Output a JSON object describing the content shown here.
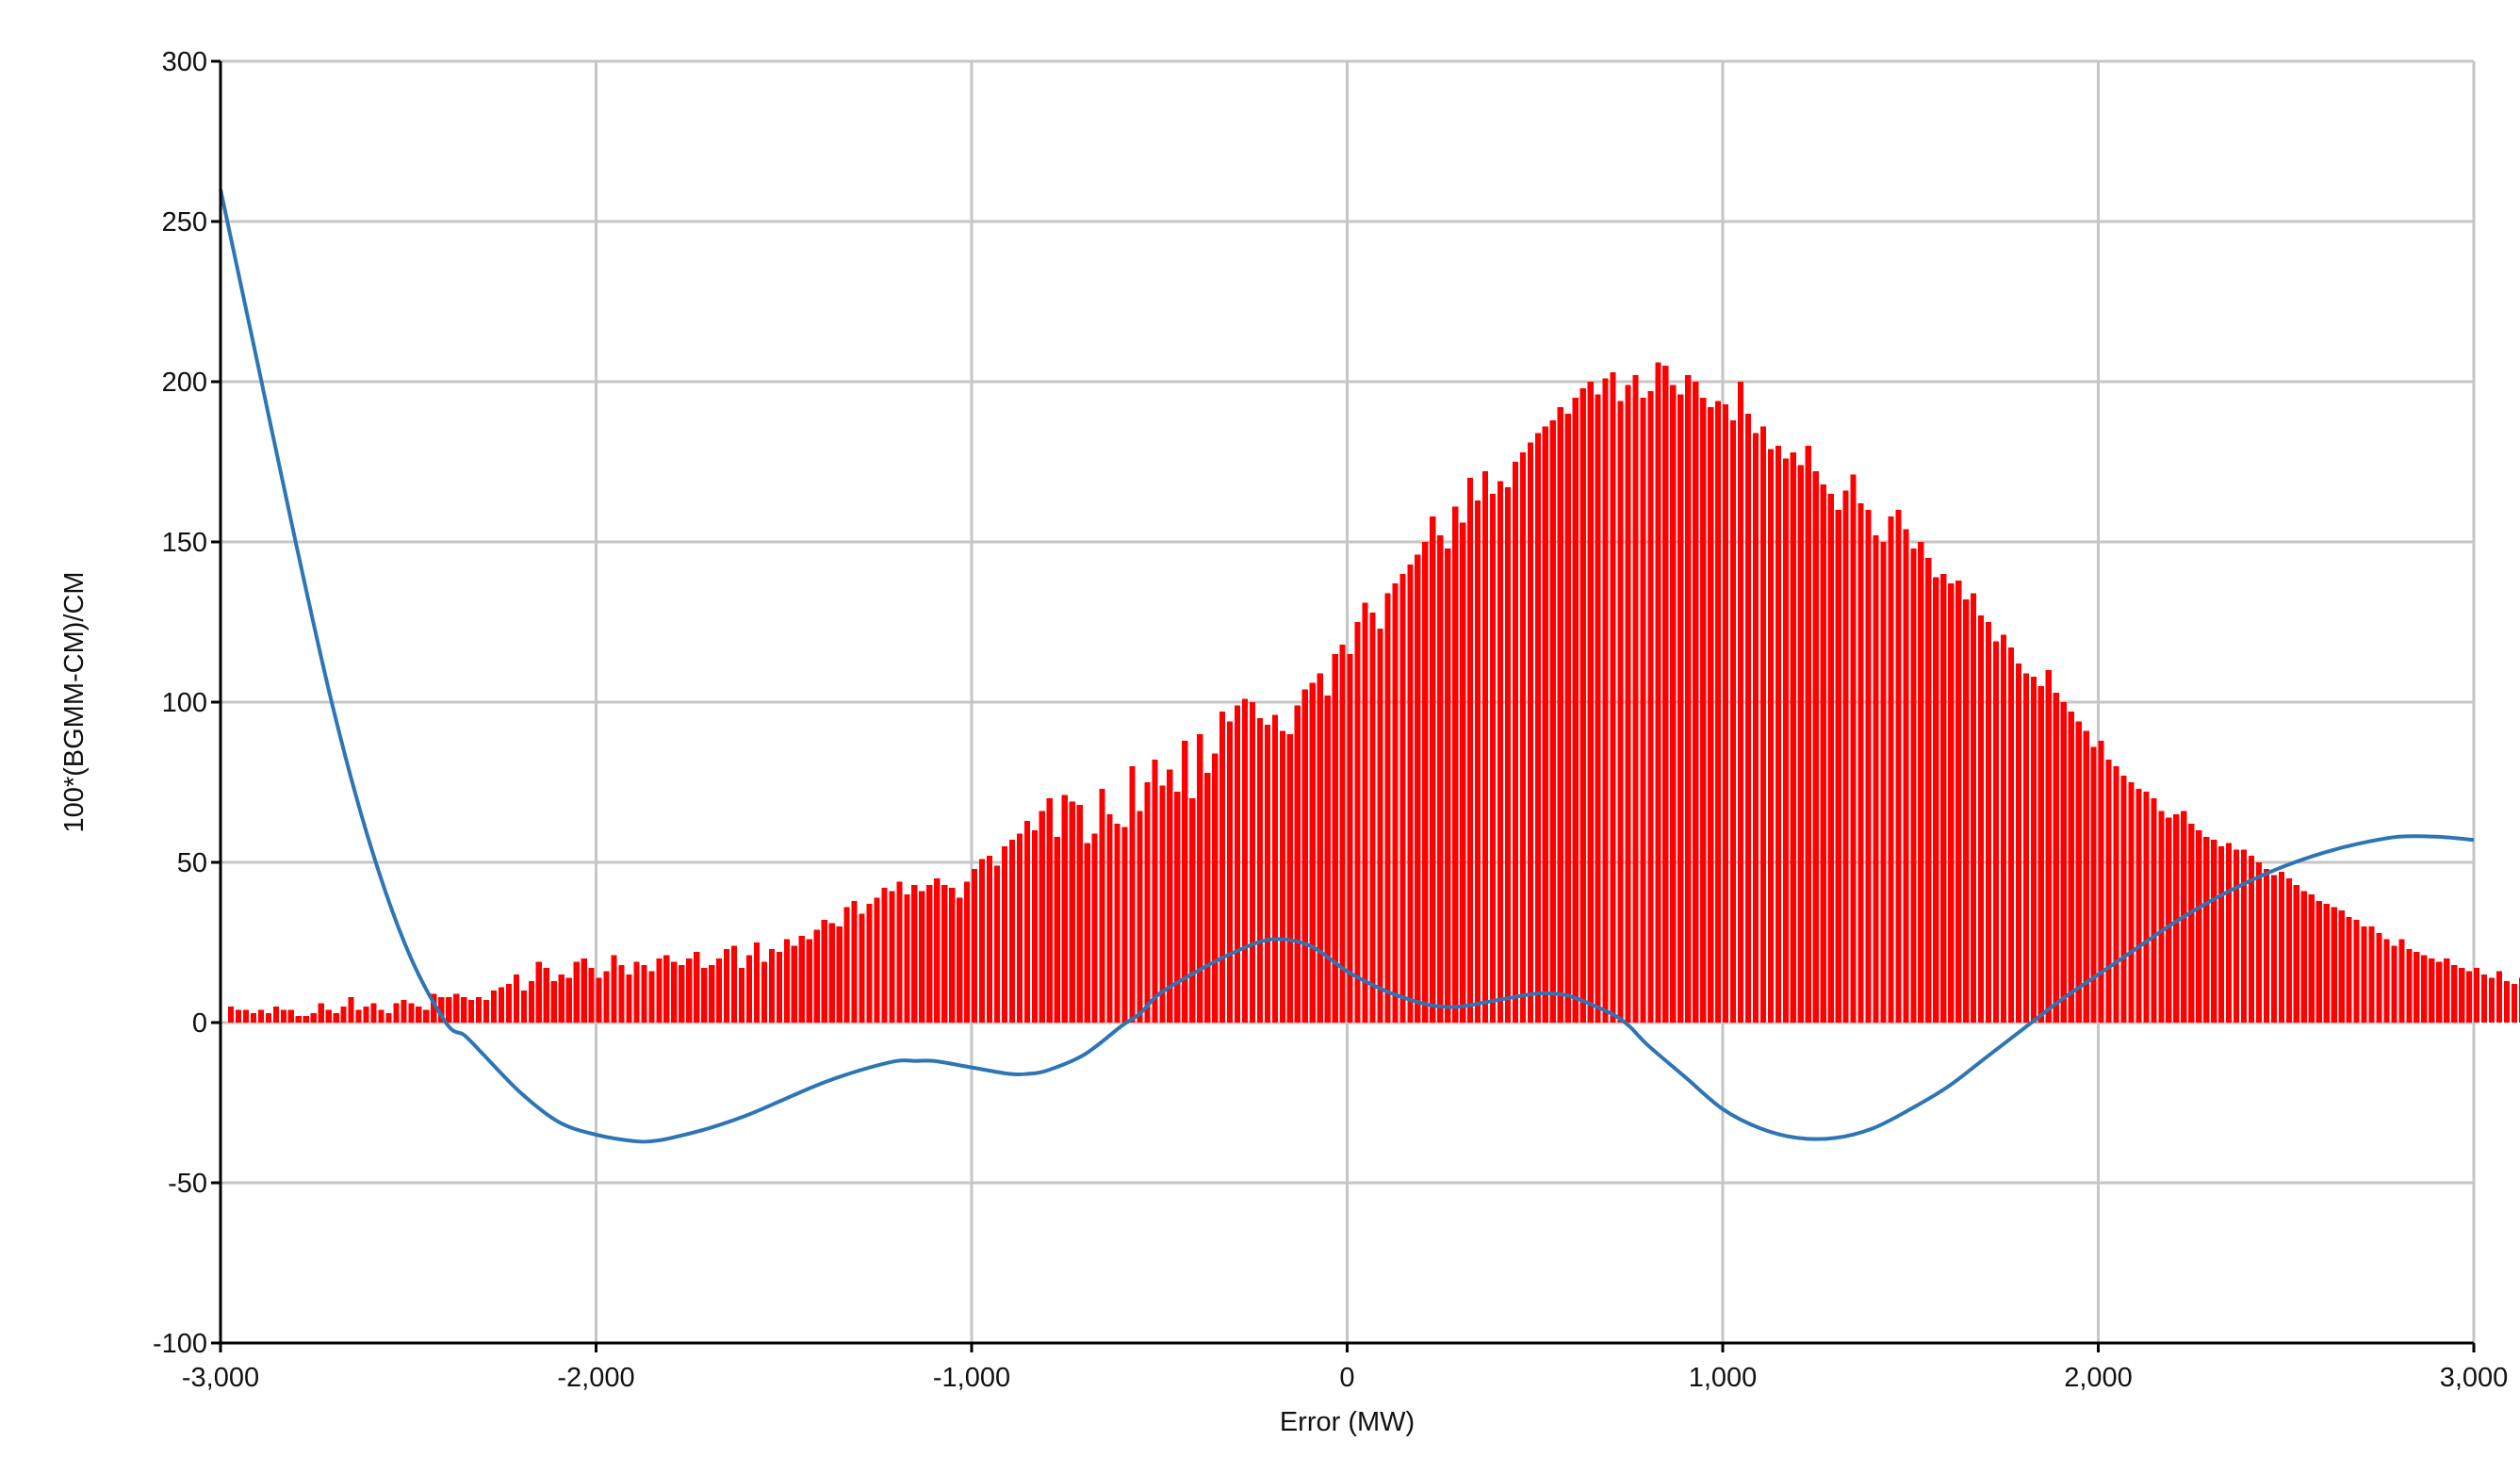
{
  "chart_data": {
    "type": "bar",
    "title": "",
    "xlabel": "Error (MW)",
    "ylabel": "100*(BGMM-CM)/CM",
    "xlim": [
      -3000,
      3000
    ],
    "ylim": [
      -100,
      300
    ],
    "grid": true,
    "legend": "none",
    "x_ticks": [
      "-3,000",
      "-2,000",
      "-1,000",
      "0",
      "1,000",
      "2,000",
      "3,000"
    ],
    "y_ticks": [
      "300",
      "250",
      "200",
      "150",
      "100",
      "50",
      "0",
      "-50",
      "-100"
    ],
    "bar_color": "#ff0000",
    "line_color": "#2e75b6",
    "bins": {
      "start": -2980,
      "width": 20,
      "values": [
        5,
        4,
        4,
        3,
        4,
        3,
        5,
        4,
        4,
        2,
        2,
        3,
        6,
        4,
        3,
        5,
        8,
        4,
        5,
        6,
        4,
        3,
        6,
        7,
        6,
        5,
        4,
        9,
        8,
        8,
        9,
        8,
        7,
        8,
        7,
        10,
        11,
        12,
        15,
        10,
        13,
        19,
        17,
        13,
        15,
        14,
        19,
        20,
        17,
        14,
        16,
        21,
        18,
        15,
        19,
        18,
        16,
        20,
        21,
        19,
        18,
        20,
        22,
        17,
        18,
        20,
        23,
        24,
        17,
        21,
        25,
        19,
        23,
        22,
        26,
        24,
        27,
        26,
        29,
        32,
        31,
        30,
        36,
        38,
        34,
        37,
        39,
        42,
        41,
        44,
        40,
        43,
        41,
        43,
        45,
        43,
        42,
        39,
        44,
        48,
        51,
        52,
        49,
        55,
        57,
        59,
        63,
        60,
        66,
        70,
        58,
        71,
        69,
        68,
        56,
        59,
        73,
        65,
        62,
        61,
        80,
        66,
        75,
        82,
        74,
        79,
        72,
        88,
        70,
        90,
        78,
        84,
        97,
        94,
        99,
        101,
        100,
        95,
        93,
        96,
        91,
        90,
        99,
        104,
        106,
        109,
        102,
        115,
        118,
        115,
        125,
        131,
        128,
        123,
        134,
        137,
        140,
        143,
        146,
        150,
        158,
        152,
        148,
        161,
        156,
        170,
        163,
        172,
        165,
        169,
        167,
        175,
        178,
        181,
        184,
        186,
        188,
        192,
        190,
        195,
        198,
        200,
        196,
        201,
        203,
        194,
        199,
        202,
        195,
        197,
        206,
        205,
        199,
        196,
        202,
        200,
        195,
        192,
        194,
        193,
        188,
        200,
        190,
        184,
        186,
        179,
        180,
        176,
        178,
        174,
        180,
        172,
        168,
        165,
        160,
        166,
        171,
        162,
        160,
        152,
        150,
        158,
        160,
        154,
        148,
        150,
        145,
        139,
        140,
        137,
        138,
        132,
        134,
        127,
        125,
        119,
        121,
        117,
        112,
        109,
        108,
        105,
        110,
        103,
        100,
        97,
        94,
        91,
        86,
        88,
        82,
        80,
        77,
        75,
        73,
        72,
        70,
        66,
        64,
        65,
        66,
        62,
        60,
        58,
        57,
        55,
        56,
        54,
        54,
        52,
        50,
        48,
        46,
        47,
        45,
        43,
        41,
        40,
        38,
        37,
        36,
        35,
        33,
        32,
        30,
        30,
        28,
        26,
        24,
        26,
        23,
        22,
        21,
        20,
        19,
        20,
        18,
        17,
        16,
        17,
        15,
        14,
        16,
        13,
        12,
        14,
        11,
        10,
        11,
        10,
        9,
        8,
        9,
        8,
        7,
        7,
        6,
        8,
        5,
        5,
        5,
        4,
        6,
        4,
        3,
        3,
        4,
        5,
        3,
        2,
        4,
        3,
        3,
        2,
        2,
        2,
        3,
        2,
        2,
        1,
        2,
        2,
        2,
        1,
        1,
        2,
        1,
        1,
        2,
        1,
        1,
        1,
        1,
        1,
        1,
        1,
        2,
        1
      ]
    },
    "series": [
      {
        "type": "line",
        "x": [
          -3000,
          -2900,
          -2800,
          -2700,
          -2600,
          -2500,
          -2400,
          -2350,
          -2300,
          -2200,
          -2100,
          -2000,
          -1900,
          -1850,
          -1800,
          -1700,
          -1600,
          -1500,
          -1400,
          -1300,
          -1200,
          -1150,
          -1100,
          -1000,
          -900,
          -850,
          -800,
          -700,
          -600,
          -550,
          -500,
          -400,
          -300,
          -200,
          -100,
          0,
          100,
          200,
          250,
          300,
          400,
          500,
          550,
          600,
          700,
          750,
          800,
          900,
          1000,
          1100,
          1200,
          1300,
          1400,
          1500,
          1600,
          1700,
          1800,
          1900,
          2000,
          2100,
          2200,
          2300,
          2400,
          2500,
          2600,
          2700,
          2800,
          2900,
          3000
        ],
        "y": [
          260,
          205,
          150,
          98,
          55,
          22,
          0,
          -4,
          -10,
          -22,
          -31,
          -35,
          -37,
          -37,
          -36,
          -33,
          -29,
          -24,
          -19,
          -15,
          -12,
          -12,
          -12,
          -14,
          -16,
          -16,
          -15,
          -10,
          -1,
          3,
          9,
          16,
          22,
          26,
          24,
          16,
          10,
          6,
          5,
          5,
          7,
          9,
          9,
          8,
          3,
          -1,
          -7,
          -17,
          -27,
          -33,
          -36,
          -36,
          -33,
          -27,
          -20,
          -11,
          -2,
          7,
          15,
          23,
          31,
          38,
          44,
          49,
          53,
          56,
          58,
          58,
          57
        ]
      }
    ]
  }
}
